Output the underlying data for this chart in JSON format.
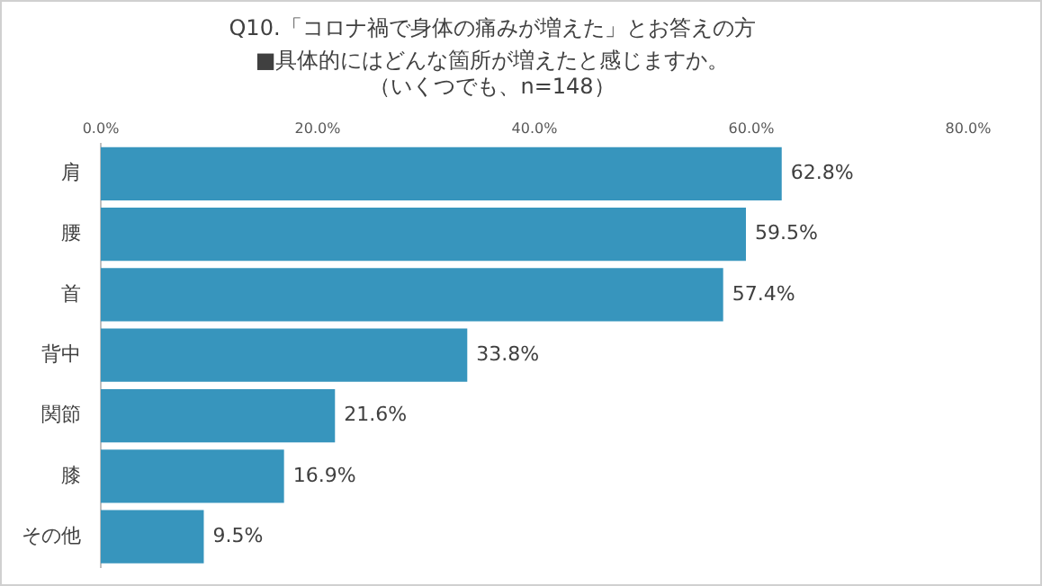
{
  "chart_data": {
    "type": "bar",
    "orientation": "horizontal",
    "title": "Q10.「コロナ禍で身体の痛みが増えた」とお答えの方",
    "subtitle": "■具体的にはどんな箇所が増えたと感じますか。",
    "annotations": [
      "（いくつでも、n=148）"
    ],
    "categories": [
      "肩",
      "腰",
      "首",
      "背中",
      "関節",
      "膝",
      "その他"
    ],
    "values": [
      62.8,
      59.5,
      57.4,
      33.8,
      21.6,
      16.9,
      9.5
    ],
    "value_labels": [
      "62.8%",
      "59.5%",
      "57.4%",
      "33.8%",
      "21.6%",
      "16.9%",
      "9.5%"
    ],
    "color": "#3795bd",
    "xlim": [
      0,
      80
    ],
    "xticks": [
      {
        "value": 0,
        "label": "0.0%"
      },
      {
        "value": 20,
        "label": "20.0%"
      },
      {
        "value": 40,
        "label": "40.0%"
      },
      {
        "value": 60,
        "label": "60.0%"
      },
      {
        "value": 80,
        "label": "80.0%"
      }
    ],
    "grid": false,
    "legend": false
  }
}
